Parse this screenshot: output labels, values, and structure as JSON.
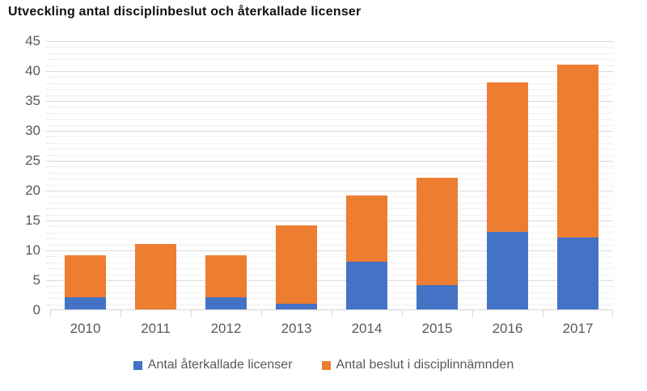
{
  "title": "Utveckling antal disciplinbeslut och återkallade licenser",
  "colors": {
    "series_revoked": "#4472C4",
    "series_decisions": "#ED7D31",
    "gridline_major": "#d9d9d9",
    "gridline_minor": "#f1f1f1",
    "axis_line": "#d6d6d6",
    "tick_mark": "#d9d9d9",
    "axis_text": "#595959",
    "title_text": "#111111"
  },
  "chart_data": {
    "type": "bar",
    "stacked": true,
    "title": "Utveckling antal disciplinbeslut och återkallade licenser",
    "categories": [
      "2010",
      "2011",
      "2012",
      "2013",
      "2014",
      "2015",
      "2016",
      "2017"
    ],
    "series": [
      {
        "name": "Antal återkallade licenser",
        "short": "aterkallade-licenser",
        "color": "#4472C4",
        "values": [
          2,
          0,
          2,
          1,
          8,
          4,
          13,
          12
        ]
      },
      {
        "name": "Antal beslut i disciplinnämnden",
        "short": "beslut-disciplinnamnden",
        "color": "#ED7D31",
        "values": [
          7,
          11,
          7,
          13,
          11,
          18,
          25,
          29
        ]
      }
    ],
    "stacked_totals": [
      9,
      11,
      9,
      14,
      19,
      22,
      38,
      41
    ],
    "xlabel": "",
    "ylabel": "",
    "ylim": [
      0,
      45
    ],
    "y_tick_step": 5,
    "y_minor_step": 1,
    "y_tick_labels": [
      "0",
      "5",
      "10",
      "15",
      "20",
      "25",
      "30",
      "35",
      "40",
      "45"
    ],
    "grid": "horizontal, major and minor, on",
    "legend_position": "bottom-center"
  }
}
